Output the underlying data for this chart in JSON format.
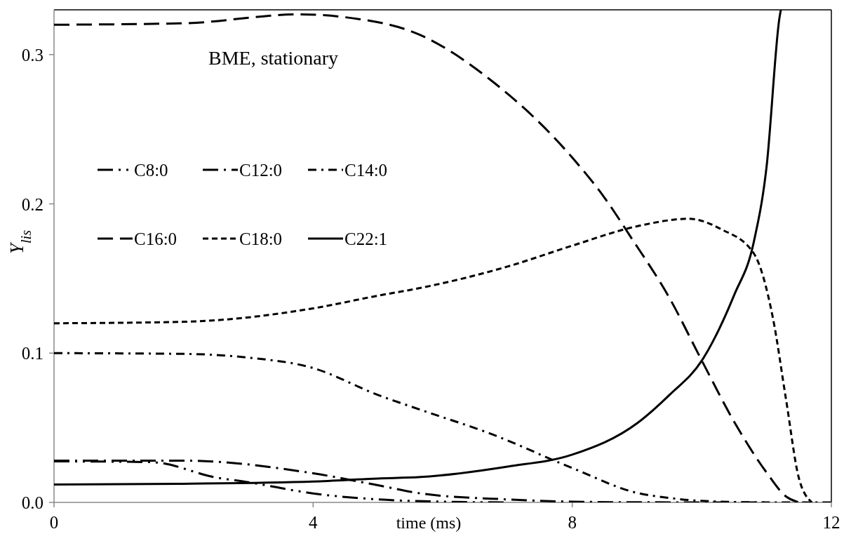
{
  "chart_data": {
    "type": "line",
    "xlabel": "time (ms)",
    "ylabel": "Y$_{lis}$",
    "annotations": [
      "BME, stationary"
    ],
    "xlim": [
      0,
      12
    ],
    "xticks": [
      0,
      4,
      8,
      12
    ],
    "ylim": [
      0,
      0.33
    ],
    "yticks": [
      {
        "value": 0,
        "label": "0.0"
      },
      0.1,
      0.2,
      0.3
    ],
    "legend": "top left",
    "grid": false,
    "marker": "none",
    "series": [
      {
        "name": "C8:0",
        "color": "#000000",
        "line_style": "dashdotdot",
        "x": [
          0,
          1.5,
          2.5,
          3,
          4,
          5,
          6,
          7
        ],
        "values": [
          0.0275,
          0.027,
          0.0167,
          0.0135,
          0.006,
          0.002,
          0.0005,
          0
        ]
      },
      {
        "name": "C12:0",
        "color": "#000000",
        "line_style": "dashdot",
        "x": [
          0,
          2,
          4,
          5,
          5.66,
          7,
          8,
          9,
          11
        ],
        "values": [
          0.028,
          0.028,
          0.0195,
          0.0115,
          0.006,
          0.002,
          0.0005,
          0.0001,
          0
        ]
      },
      {
        "name": "C14:0",
        "color": "#000000",
        "line_style": "shortdashdot",
        "x": [
          0,
          2,
          3,
          4,
          5,
          5.66,
          6.74,
          8,
          9,
          9.5,
          10,
          11,
          12
        ],
        "values": [
          0.1,
          0.0995,
          0.097,
          0.09,
          0.072,
          0.062,
          0.046,
          0.023,
          0.0064,
          0.003,
          0.001,
          0,
          0
        ]
      },
      {
        "name": "C16:0",
        "color": "#000000",
        "line_style": "longdash",
        "x": [
          0,
          2,
          3.8,
          4.5,
          5.66,
          6.74,
          8,
          8.5,
          8.9,
          9.5,
          10,
          10.5,
          11,
          11.3,
          11.5
        ],
        "values": [
          0.32,
          0.321,
          0.327,
          0.325,
          0.313,
          0.283,
          0.231,
          0.204,
          0.178,
          0.137,
          0.095,
          0.054,
          0.02,
          0.004,
          0
        ]
      },
      {
        "name": "C18:0",
        "color": "#000000",
        "line_style": "dashed",
        "x": [
          0,
          2,
          4,
          5,
          5.66,
          7,
          8,
          9,
          9.8,
          10.3,
          10.8,
          11.1,
          11.3,
          11.5,
          11.7
        ],
        "values": [
          0.12,
          0.121,
          0.13,
          0.1385,
          0.1437,
          0.158,
          0.172,
          0.185,
          0.19,
          0.183,
          0.167,
          0.123,
          0.069,
          0.016,
          0
        ]
      },
      {
        "name": "C22:1",
        "color": "#000000",
        "line_style": "solid",
        "x": [
          0,
          2,
          4,
          5,
          5.66,
          7,
          8,
          9,
          9.5,
          10,
          10.5,
          10.8,
          11,
          11.2,
          11.22
        ],
        "values": [
          0.012,
          0.0125,
          0.014,
          0.016,
          0.017,
          0.024,
          0.032,
          0.053,
          0.072,
          0.095,
          0.139,
          0.174,
          0.225,
          0.325,
          0.33
        ]
      }
    ]
  }
}
